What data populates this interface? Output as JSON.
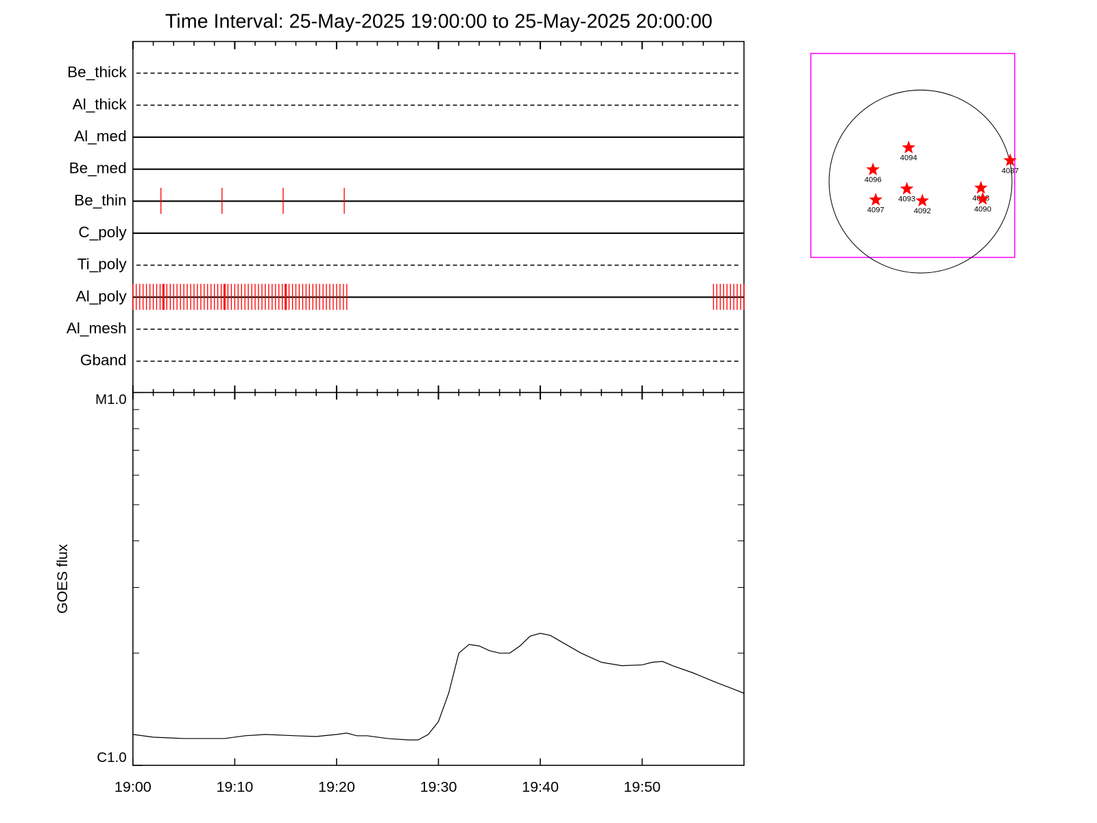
{
  "chart_data": [
    {
      "type": "timeline",
      "title": "Time Interval: 25-May-2025 19:00:00 to 25-May-2025 20:00:00",
      "event_color": "#ff0000",
      "xlim": [
        0,
        60
      ],
      "xticks": [
        0,
        10,
        20,
        30,
        40,
        50
      ],
      "xminor": [
        2,
        4,
        6,
        8,
        12,
        14,
        16,
        18,
        22,
        24,
        26,
        28,
        32,
        34,
        36,
        38,
        42,
        44,
        46,
        48,
        52,
        54,
        56,
        58
      ],
      "channels": [
        {
          "name": "Be_thick",
          "line": "dashed"
        },
        {
          "name": "Al_thick",
          "line": "dashed"
        },
        {
          "name": "Al_med",
          "line": "solid"
        },
        {
          "name": "Be_med",
          "line": "solid"
        },
        {
          "name": "Be_thin",
          "line": "solid",
          "events": [
            2.75,
            8.75,
            14.75,
            20.75
          ]
        },
        {
          "name": "C_poly",
          "line": "solid"
        },
        {
          "name": "Ti_poly",
          "line": "dashed"
        },
        {
          "name": "Al_poly",
          "line": "solid",
          "events": [
            0,
            0.33,
            0.67,
            1,
            1.33,
            1.67,
            2,
            2.33,
            2.67,
            3,
            3.33,
            3.67,
            4,
            4.33,
            4.67,
            5,
            5.33,
            5.67,
            6,
            6.33,
            6.67,
            7,
            7.33,
            7.67,
            8,
            8.33,
            8.67,
            9,
            9.33,
            9.67,
            10,
            10.33,
            10.67,
            11,
            11.33,
            11.67,
            12,
            12.33,
            12.67,
            13,
            13.33,
            13.67,
            14,
            14.33,
            14.67,
            15,
            15.33,
            15.67,
            16,
            16.33,
            16.67,
            17,
            17.33,
            17.67,
            18,
            18.33,
            18.67,
            19,
            19.33,
            19.67,
            20,
            20.33,
            20.67,
            21,
            57,
            57.33,
            57.67,
            58,
            58.33,
            58.67,
            59,
            59.33,
            59.67,
            60
          ],
          "heavy_events": [
            3,
            9,
            15
          ]
        },
        {
          "name": "Al_mesh",
          "line": "dashed"
        },
        {
          "name": "Gband",
          "line": "dashed"
        }
      ]
    },
    {
      "type": "line",
      "ylabel": "GOES flux",
      "color": "#000000",
      "log_y": true,
      "xlim": [
        0,
        60
      ],
      "xticks": [
        {
          "value": 0,
          "label": "19:00"
        },
        {
          "value": 10,
          "label": "19:10"
        },
        {
          "value": 20,
          "label": "19:20"
        },
        {
          "value": 30,
          "label": "19:30"
        },
        {
          "value": 40,
          "label": "19:40"
        },
        {
          "value": 50,
          "label": "19:50"
        }
      ],
      "ylim": [
        1e-06,
        1e-05
      ],
      "yticks": [
        {
          "value": 1e-06,
          "label": "C1.0"
        },
        {
          "value": 1e-05,
          "label": "M1.0"
        }
      ],
      "yminor": [
        2e-06,
        3e-06,
        4e-06,
        5e-06,
        6e-06,
        7e-06,
        8e-06,
        9e-06
      ],
      "x": [
        0,
        2,
        5,
        9,
        11,
        13,
        16,
        18,
        20,
        21,
        22,
        23,
        25,
        27,
        28,
        29,
        30,
        31,
        32,
        33,
        34,
        35,
        36,
        37,
        38,
        39,
        40,
        41,
        42,
        44,
        46,
        48,
        50,
        51,
        52,
        53,
        55,
        57,
        59,
        60
      ],
      "values": [
        1.21e-06,
        1.19e-06,
        1.18e-06,
        1.18e-06,
        1.2e-06,
        1.21e-06,
        1.2e-06,
        1.195e-06,
        1.21e-06,
        1.22e-06,
        1.2e-06,
        1.2e-06,
        1.18e-06,
        1.17e-06,
        1.17e-06,
        1.21e-06,
        1.31e-06,
        1.56e-06,
        2e-06,
        2.11e-06,
        2.09e-06,
        2.03e-06,
        2e-06,
        2e-06,
        2.09e-06,
        2.22e-06,
        2.26e-06,
        2.23e-06,
        2.15e-06,
        2e-06,
        1.89e-06,
        1.85e-06,
        1.86e-06,
        1.89e-06,
        1.9e-06,
        1.85e-06,
        1.77e-06,
        1.68e-06,
        1.6e-06,
        1.56e-06
      ]
    },
    {
      "type": "map",
      "frame_color": "#ff00ff",
      "color": "#ff0000",
      "xlim": [
        -1.2,
        1.03
      ],
      "ylim": [
        -0.83,
        1.4
      ],
      "disk_radius": 1,
      "points": [
        {
          "label": "4094",
          "x": -0.13,
          "y": 0.37
        },
        {
          "label": "4096",
          "x": -0.52,
          "y": 0.13
        },
        {
          "label": "4097",
          "x": -0.49,
          "y": -0.2
        },
        {
          "label": "4093",
          "x": -0.15,
          "y": -0.08
        },
        {
          "label": "4092",
          "x": 0.02,
          "y": -0.21
        },
        {
          "label": "4088",
          "x": 0.66,
          "y": -0.07
        },
        {
          "label": "4090",
          "x": 0.68,
          "y": -0.19
        },
        {
          "label": "4087",
          "x": 0.98,
          "y": 0.23
        }
      ]
    }
  ]
}
